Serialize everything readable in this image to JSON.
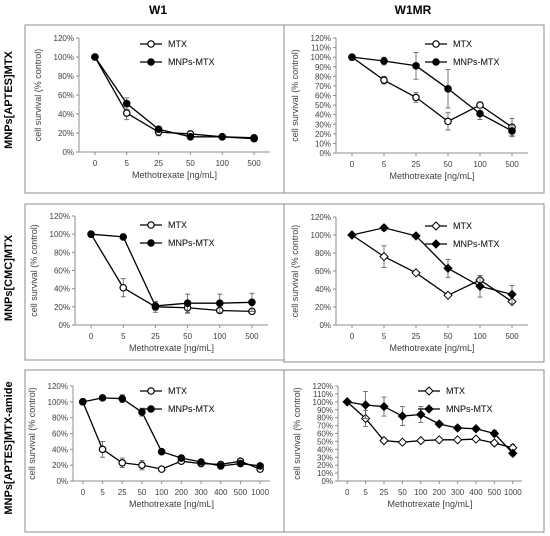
{
  "column_headers": [
    "W1",
    "W1MR"
  ],
  "row_labels": [
    "MNPs[APTES]MTX",
    "MNPs[CMC]MTX",
    "MNPs[APTES]MTX-amide"
  ],
  "chart_data": [
    {
      "type": "line",
      "row": 0,
      "col": 0,
      "marker_style": "circle",
      "x": [
        "0",
        "5",
        "25",
        "50",
        "100",
        "500"
      ],
      "xlabel": "Methotrexate  [ng/mL]",
      "ylabel": "cell survival (% control)",
      "ylim": [
        0,
        120
      ],
      "yticks": [
        "0%",
        "20%",
        "40%",
        "60%",
        "80%",
        "100%",
        "120%"
      ],
      "grid": false,
      "series": [
        {
          "name": "MTX",
          "marker": "open",
          "values": [
            100,
            41,
            21,
            19,
            16,
            14
          ],
          "errors": [
            0,
            7,
            4,
            3,
            2,
            2
          ]
        },
        {
          "name": "MNPs-MTX",
          "marker": "filled",
          "values": [
            100,
            51,
            24,
            16,
            16,
            15
          ],
          "errors": [
            0,
            6,
            2,
            2,
            2,
            2
          ]
        }
      ]
    },
    {
      "type": "line",
      "row": 0,
      "col": 1,
      "marker_style": "circle",
      "x": [
        "0",
        "5",
        "25",
        "50",
        "100",
        "500"
      ],
      "xlabel": "Methotrexate  [ng/mL]",
      "ylabel": "cell survival (% control)",
      "ylim": [
        0,
        120
      ],
      "yticks": [
        "0%",
        "10%",
        "20%",
        "30%",
        "40%",
        "50%",
        "60%",
        "70%",
        "80%",
        "90%",
        "100%",
        "110%",
        "120%"
      ],
      "grid": false,
      "series": [
        {
          "name": "MTX",
          "marker": "open",
          "values": [
            100,
            76,
            58,
            33,
            50,
            27
          ],
          "errors": [
            0,
            4,
            5,
            9,
            3,
            9
          ]
        },
        {
          "name": "MNPs-MTX",
          "marker": "filled",
          "values": [
            100,
            96,
            91,
            67,
            41,
            23
          ],
          "errors": [
            0,
            4,
            14,
            20,
            6,
            6
          ]
        }
      ]
    },
    {
      "type": "line",
      "row": 1,
      "col": 0,
      "marker_style": "circle",
      "x": [
        "0",
        "5",
        "25",
        "50",
        "100",
        "500"
      ],
      "xlabel": "Methotrexate  [ng/mL]",
      "ylabel": "cell survival (% control)",
      "ylim": [
        0,
        120
      ],
      "yticks": [
        "0%",
        "20%",
        "40%",
        "60%",
        "80%",
        "100%",
        "120%"
      ],
      "grid": false,
      "series": [
        {
          "name": "MTX",
          "marker": "open",
          "values": [
            100,
            41,
            20,
            19,
            16,
            15
          ],
          "errors": [
            0,
            10,
            6,
            6,
            2,
            2
          ]
        },
        {
          "name": "MNPs-MTX",
          "marker": "filled",
          "values": [
            100,
            97,
            21,
            24,
            24,
            25
          ],
          "errors": [
            0,
            2,
            5,
            10,
            10,
            10
          ]
        }
      ]
    },
    {
      "type": "line",
      "row": 1,
      "col": 1,
      "marker_style": "diamond",
      "x": [
        "0",
        "5",
        "25",
        "50",
        "100",
        "500"
      ],
      "xlabel": "Methotrexate  [ng/mL]",
      "ylabel": "cell survival (% control)",
      "ylim": [
        0,
        120
      ],
      "yticks": [
        "0%",
        "20%",
        "40%",
        "60%",
        "80%",
        "100%",
        "120%"
      ],
      "grid": false,
      "series": [
        {
          "name": "MTX",
          "marker": "open",
          "values": [
            100,
            76,
            58,
            33,
            50,
            26
          ],
          "errors": [
            0,
            12,
            2,
            2,
            3,
            2
          ]
        },
        {
          "name": "MNPs-MTX",
          "marker": "filled",
          "values": [
            100,
            108,
            99,
            63,
            43,
            34
          ],
          "errors": [
            0,
            3,
            2,
            10,
            12,
            10
          ]
        }
      ]
    },
    {
      "type": "line",
      "row": 2,
      "col": 0,
      "marker_style": "circle",
      "x": [
        "0",
        "5",
        "25",
        "50",
        "100",
        "200",
        "300",
        "400",
        "500",
        "1000"
      ],
      "xlabel": "Methotrexate  [ng/mL]",
      "ylabel": "cell survival (% control)",
      "ylim": [
        0,
        120
      ],
      "yticks": [
        "0%",
        "20%",
        "40%",
        "60%",
        "80%",
        "100%",
        "120%"
      ],
      "grid": false,
      "series": [
        {
          "name": "MTX",
          "marker": "open",
          "values": [
            100,
            40,
            23,
            20,
            15,
            25,
            22,
            21,
            25,
            15
          ],
          "errors": [
            0,
            10,
            6,
            6,
            2,
            2,
            2,
            2,
            2,
            2
          ]
        },
        {
          "name": "MNPs-MTX",
          "marker": "filled",
          "values": [
            100,
            105,
            104,
            87,
            37,
            29,
            24,
            19,
            22,
            19
          ],
          "errors": [
            0,
            2,
            5,
            5,
            2,
            2,
            2,
            2,
            2,
            2
          ]
        }
      ]
    },
    {
      "type": "line",
      "row": 2,
      "col": 1,
      "marker_style": "diamond",
      "x": [
        "0",
        "5",
        "25",
        "50",
        "100",
        "200",
        "300",
        "400",
        "500",
        "1000"
      ],
      "xlabel": "Methotrexate  [ng/mL]",
      "ylabel": "cell survival (% control)",
      "ylim": [
        0,
        120
      ],
      "yticks": [
        "0%",
        "10%",
        "20%",
        "30%",
        "40%",
        "50%",
        "60%",
        "70%",
        "80%",
        "90%",
        "100%",
        "110%",
        "120%"
      ],
      "grid": false,
      "series": [
        {
          "name": "MTX",
          "marker": "open",
          "values": [
            100,
            79,
            51,
            49,
            51,
            52,
            52,
            53,
            48,
            42
          ],
          "errors": [
            0,
            10,
            2,
            2,
            2,
            2,
            2,
            2,
            2,
            4
          ]
        },
        {
          "name": "MNPs-MTX",
          "marker": "filled",
          "values": [
            100,
            96,
            94,
            82,
            84,
            72,
            67,
            66,
            60,
            35
          ],
          "errors": [
            0,
            17,
            12,
            12,
            10,
            3,
            3,
            3,
            4,
            3
          ]
        }
      ]
    }
  ]
}
